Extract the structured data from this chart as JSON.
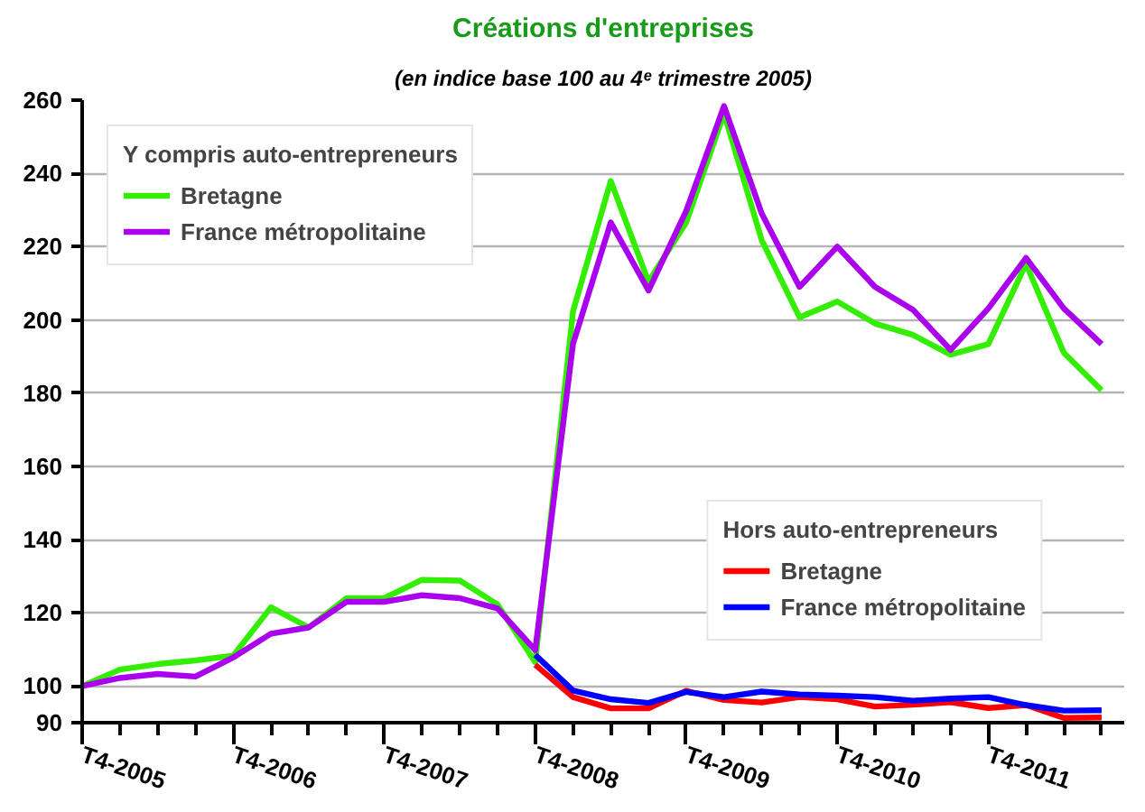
{
  "chart_data": {
    "type": "line",
    "title": "Créations d'entreprises",
    "subtitle": "(en indice base 100 au 4ᵉ trimestre 2005)",
    "categories": [
      "T4-2005",
      null,
      null,
      null,
      "T4-2006",
      null,
      null,
      null,
      "T4-2007",
      null,
      null,
      null,
      "T4-2008",
      null,
      null,
      null,
      "T4-2009",
      null,
      null,
      null,
      "T4-2010",
      null,
      null,
      null,
      "T4-2011",
      null,
      null,
      null
    ],
    "ylim": [
      90,
      260
    ],
    "yticks": [
      90,
      100,
      120,
      140,
      160,
      180,
      200,
      220,
      240,
      260
    ],
    "grid": "y",
    "legend": [
      "top left",
      "bottom right"
    ],
    "legend_title": [
      "Y compris auto-entrepreneurs",
      "Hors auto-entrepreneurs"
    ],
    "series": [
      {
        "name": "Bretagne",
        "color": "#33ee00",
        "values": [
          100,
          104.5,
          106,
          107,
          108.3,
          121.5,
          116,
          124,
          124,
          129,
          128.8,
          122.3,
          106.5,
          202.3,
          237.9,
          210.4,
          226.6,
          256.4,
          221.7,
          200.7,
          205,
          199,
          195.9,
          190.5,
          193.4,
          215.3,
          191,
          180.8
        ]
      },
      {
        "name": "France métropolitaine",
        "color": "#aa00ee",
        "values": [
          100,
          102.2,
          103.3,
          102.6,
          107.8,
          114.3,
          116,
          123,
          123,
          124.8,
          124,
          121.2,
          109.8,
          193.4,
          226.6,
          208,
          229.8,
          258.4,
          229,
          209,
          220,
          209,
          202.8,
          191.8,
          203.1,
          216.9,
          203.1,
          193.4
        ]
      },
      {
        "name": "Bretagne",
        "color": "#ff0000",
        "values": [
          null,
          null,
          null,
          null,
          null,
          null,
          null,
          null,
          null,
          null,
          null,
          null,
          105.8,
          97,
          93.9,
          93.9,
          98.7,
          96.2,
          95.5,
          97,
          96.4,
          94.4,
          94.9,
          95.6,
          94,
          94.8,
          91.3,
          91.4
        ]
      },
      {
        "name": "France métropolitaine",
        "color": "#0000ff",
        "values": [
          null,
          null,
          null,
          null,
          null,
          null,
          null,
          null,
          null,
          null,
          null,
          null,
          108.5,
          98.8,
          96.4,
          95.4,
          98.4,
          97,
          98.5,
          97.7,
          97.4,
          97,
          96,
          96.6,
          97,
          94.8,
          93.3,
          93.4
        ]
      }
    ]
  }
}
